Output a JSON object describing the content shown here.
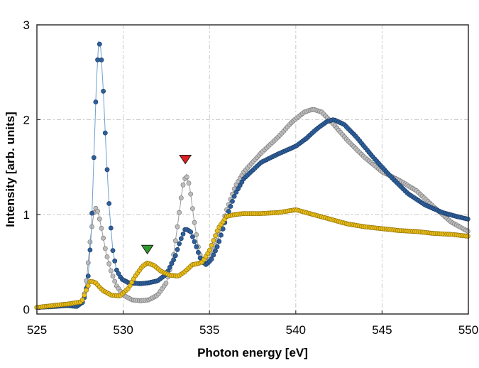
{
  "chart_data": {
    "type": "scatter",
    "title": "",
    "xlabel": "Photon energy [eV]",
    "ylabel": "Intensity [arb. units]",
    "xlim": [
      525,
      550
    ],
    "ylim": [
      -0.05,
      3
    ],
    "xticks": [
      525,
      530,
      535,
      540,
      545,
      550
    ],
    "yticks": [
      0,
      1,
      2,
      3
    ],
    "xtick_labels": [
      "525",
      "530",
      "535",
      "540",
      "545",
      "550"
    ],
    "ytick_labels": [
      "0",
      "1",
      "2",
      "3"
    ],
    "grid": true,
    "legend": "none",
    "series": [
      {
        "name": "blue",
        "color": "#2e5f9a",
        "edge": "#17365f",
        "line": "#6f9fd0",
        "points": [
          [
            525,
            0.02
          ],
          [
            526,
            0.03
          ],
          [
            526.8,
            0.04
          ],
          [
            527.3,
            0.03
          ],
          [
            527.7,
            0.08
          ],
          [
            527.95,
            0.3
          ],
          [
            528.15,
            0.8
          ],
          [
            528.3,
            1.6
          ],
          [
            528.45,
            2.4
          ],
          [
            528.58,
            2.83
          ],
          [
            528.7,
            2.75
          ],
          [
            528.85,
            2.3
          ],
          [
            529.0,
            1.7
          ],
          [
            529.2,
            1.05
          ],
          [
            529.4,
            0.62
          ],
          [
            529.6,
            0.42
          ],
          [
            529.9,
            0.32
          ],
          [
            530.3,
            0.28
          ],
          [
            531.0,
            0.27
          ],
          [
            531.5,
            0.28
          ],
          [
            532.0,
            0.3
          ],
          [
            532.5,
            0.37
          ],
          [
            533.0,
            0.55
          ],
          [
            533.3,
            0.72
          ],
          [
            533.6,
            0.85
          ],
          [
            533.9,
            0.82
          ],
          [
            534.2,
            0.68
          ],
          [
            534.5,
            0.52
          ],
          [
            534.8,
            0.47
          ],
          [
            535.1,
            0.52
          ],
          [
            535.5,
            0.68
          ],
          [
            536,
            0.98
          ],
          [
            536.5,
            1.22
          ],
          [
            537,
            1.38
          ],
          [
            538,
            1.55
          ],
          [
            539,
            1.64
          ],
          [
            540,
            1.72
          ],
          [
            540.6,
            1.8
          ],
          [
            541.2,
            1.9
          ],
          [
            541.8,
            1.98
          ],
          [
            542.2,
            2.0
          ],
          [
            542.8,
            1.95
          ],
          [
            543.5,
            1.82
          ],
          [
            544.5,
            1.6
          ],
          [
            545.5,
            1.4
          ],
          [
            546.5,
            1.22
          ],
          [
            547.5,
            1.1
          ],
          [
            548.5,
            1.02
          ],
          [
            549.3,
            0.98
          ],
          [
            550,
            0.95
          ]
        ]
      },
      {
        "name": "gray",
        "color": "#bdbdbd",
        "edge": "#707070",
        "line": "#9a9a9a",
        "points": [
          [
            525,
            0.02
          ],
          [
            526,
            0.03
          ],
          [
            526.8,
            0.04
          ],
          [
            527.3,
            0.03
          ],
          [
            527.7,
            0.1
          ],
          [
            527.9,
            0.35
          ],
          [
            528.1,
            0.75
          ],
          [
            528.3,
            1.02
          ],
          [
            528.45,
            1.08
          ],
          [
            528.6,
            0.98
          ],
          [
            528.8,
            0.8
          ],
          [
            529.0,
            0.6
          ],
          [
            529.3,
            0.4
          ],
          [
            529.6,
            0.25
          ],
          [
            530.0,
            0.15
          ],
          [
            530.5,
            0.1
          ],
          [
            531.0,
            0.09
          ],
          [
            531.5,
            0.1
          ],
          [
            532.0,
            0.15
          ],
          [
            532.5,
            0.28
          ],
          [
            532.9,
            0.55
          ],
          [
            533.2,
            0.95
          ],
          [
            533.45,
            1.3
          ],
          [
            533.65,
            1.42
          ],
          [
            533.85,
            1.3
          ],
          [
            534.1,
            0.95
          ],
          [
            534.4,
            0.6
          ],
          [
            534.7,
            0.48
          ],
          [
            535.0,
            0.52
          ],
          [
            535.5,
            0.75
          ],
          [
            536,
            1.05
          ],
          [
            536.5,
            1.3
          ],
          [
            537,
            1.45
          ],
          [
            538,
            1.65
          ],
          [
            539,
            1.82
          ],
          [
            539.8,
            1.98
          ],
          [
            540.5,
            2.08
          ],
          [
            541,
            2.11
          ],
          [
            541.5,
            2.08
          ],
          [
            542.2,
            1.95
          ],
          [
            543,
            1.78
          ],
          [
            544,
            1.6
          ],
          [
            545,
            1.45
          ],
          [
            546,
            1.36
          ],
          [
            547,
            1.25
          ],
          [
            548,
            1.08
          ],
          [
            549,
            0.92
          ],
          [
            550,
            0.82
          ]
        ]
      },
      {
        "name": "yellow",
        "color": "#e8be1a",
        "edge": "#8a6a00",
        "line": "#c8a020",
        "points": [
          [
            525,
            0.02
          ],
          [
            526,
            0.04
          ],
          [
            527,
            0.06
          ],
          [
            527.6,
            0.08
          ],
          [
            527.9,
            0.22
          ],
          [
            528.1,
            0.3
          ],
          [
            528.4,
            0.28
          ],
          [
            528.8,
            0.2
          ],
          [
            529.3,
            0.15
          ],
          [
            529.8,
            0.14
          ],
          [
            530.3,
            0.22
          ],
          [
            530.7,
            0.35
          ],
          [
            531.1,
            0.45
          ],
          [
            531.4,
            0.49
          ],
          [
            531.8,
            0.46
          ],
          [
            532.2,
            0.4
          ],
          [
            532.7,
            0.36
          ],
          [
            533.2,
            0.35
          ],
          [
            533.6,
            0.4
          ],
          [
            534.0,
            0.47
          ],
          [
            534.3,
            0.48
          ],
          [
            534.6,
            0.5
          ],
          [
            535,
            0.62
          ],
          [
            535.5,
            0.85
          ],
          [
            536,
            0.98
          ],
          [
            536.5,
            1.0
          ],
          [
            537,
            1.01
          ],
          [
            538,
            1.01
          ],
          [
            539,
            1.02
          ],
          [
            540,
            1.05
          ],
          [
            541,
            1.0
          ],
          [
            542,
            0.95
          ],
          [
            543,
            0.9
          ],
          [
            544,
            0.87
          ],
          [
            545,
            0.85
          ],
          [
            546,
            0.83
          ],
          [
            547,
            0.82
          ],
          [
            548,
            0.8
          ],
          [
            549,
            0.79
          ],
          [
            550,
            0.77
          ]
        ]
      }
    ],
    "markers": [
      {
        "name": "green-triangle",
        "x": 531.4,
        "y": 0.63,
        "color": "#2e9a2e"
      },
      {
        "name": "red-triangle",
        "x": 533.6,
        "y": 1.58,
        "color": "#e02020"
      }
    ]
  }
}
